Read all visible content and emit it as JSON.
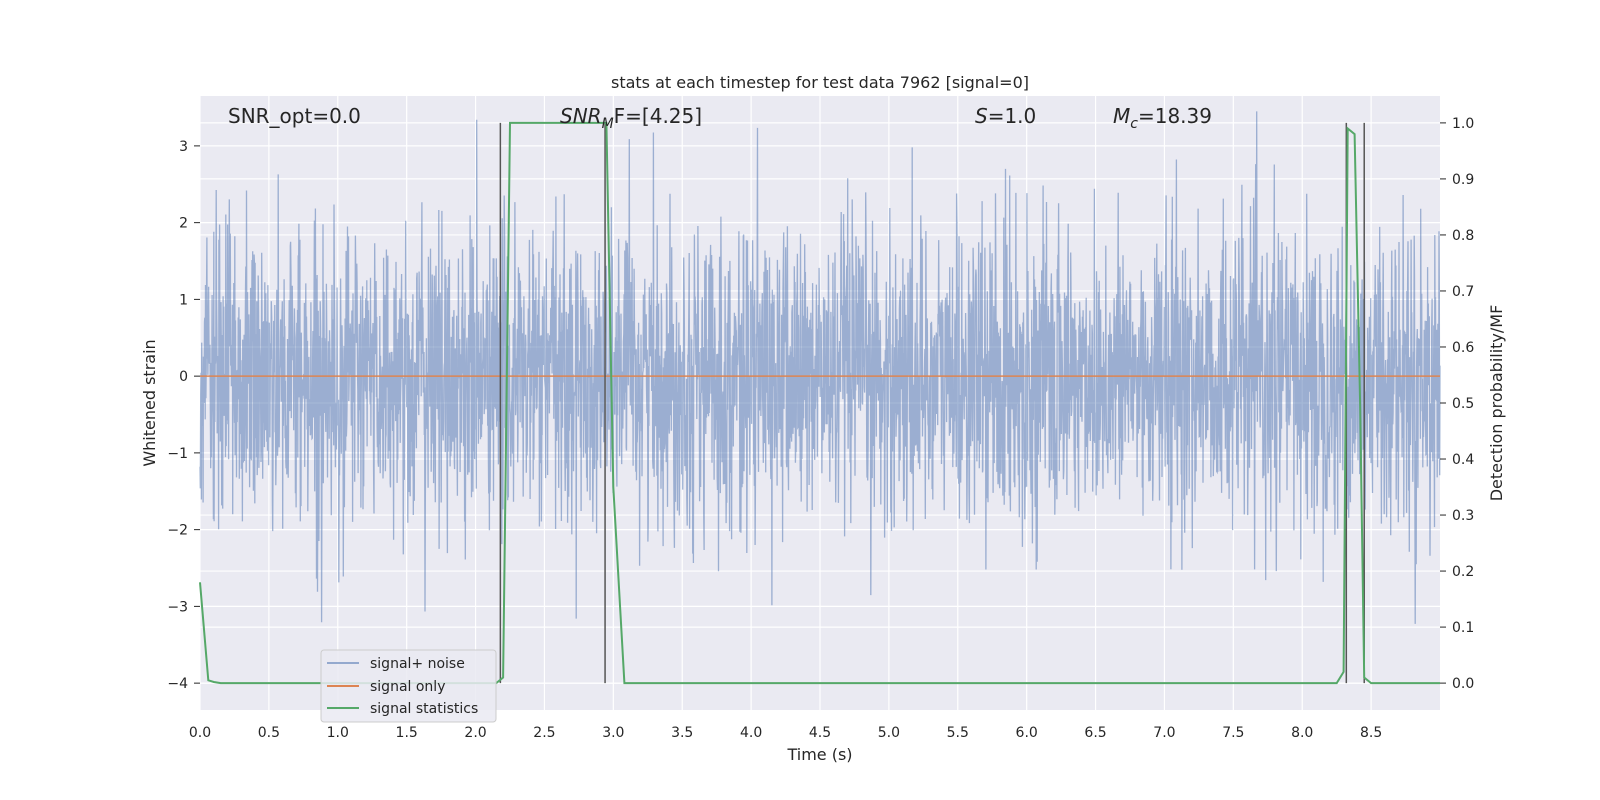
{
  "chart_data": {
    "type": "line",
    "title": "stats at each timestep for test data 7962 [signal=0]",
    "xlabel": "Time (s)",
    "ylabel": "Whitened strain",
    "y2label": "Detection probability/MF",
    "xlim": [
      0.0,
      9.0
    ],
    "ylim": [
      -4.35,
      3.65
    ],
    "y2lim": [
      -0.048,
      1.048
    ],
    "xticks": [
      "0.0",
      "0.5",
      "1.0",
      "1.5",
      "2.0",
      "2.5",
      "3.0",
      "3.5",
      "4.0",
      "4.5",
      "5.0",
      "5.5",
      "6.0",
      "6.5",
      "7.0",
      "7.5",
      "8.0",
      "8.5"
    ],
    "xtick_values": [
      0.0,
      0.5,
      1.0,
      1.5,
      2.0,
      2.5,
      3.0,
      3.5,
      4.0,
      4.5,
      5.0,
      5.5,
      6.0,
      6.5,
      7.0,
      7.5,
      8.0,
      8.5
    ],
    "yticks": [
      3,
      2,
      1,
      0,
      -1,
      -2,
      -3,
      -4
    ],
    "ytick_labels": [
      "3",
      "2",
      "1",
      "0",
      "−1",
      "−2",
      "−3",
      "−4"
    ],
    "y2ticks": [
      1.0,
      0.9,
      0.8,
      0.7,
      0.6,
      0.5,
      0.4,
      0.3,
      0.2,
      0.1,
      0.0
    ],
    "y2tick_labels": [
      "1.0",
      "0.9",
      "0.8",
      "0.7",
      "0.6",
      "0.5",
      "0.4",
      "0.3",
      "0.2",
      "0.1",
      "0.0"
    ],
    "grid": true,
    "legend_position": "lower-left",
    "colors": {
      "background": "#EAEAF2",
      "noise": "#4C72B0",
      "signal": "#DD8452",
      "statistics": "#55A868",
      "marker": "#555555"
    },
    "series": [
      {
        "name": "signal+ noise",
        "axis": "left",
        "note_type": "dense noise trace, ~1.8 std, sampled",
        "std": 0.95,
        "duration": 9.0
      },
      {
        "name": "signal only",
        "axis": "left",
        "x": [
          0.0,
          9.0
        ],
        "y": [
          0.0,
          0.0
        ]
      },
      {
        "name": "signal statistics",
        "axis": "right",
        "x": [
          0.0,
          0.06,
          0.1,
          0.15,
          2.15,
          2.2,
          2.25,
          2.8,
          2.95,
          3.0,
          3.08,
          8.25,
          8.3,
          8.33,
          8.38,
          8.42,
          8.45,
          8.5,
          9.0
        ],
        "y": [
          0.18,
          0.005,
          0.002,
          0.0,
          0.0,
          0.01,
          1.0,
          1.0,
          1.0,
          0.35,
          0.0,
          0.0,
          0.02,
          0.99,
          0.98,
          0.5,
          0.01,
          0.0,
          0.0
        ]
      }
    ],
    "vlines": [
      2.18,
      2.94,
      8.32,
      8.45
    ],
    "annotations": {
      "snr_opt": "SNR_opt=0.0",
      "snr_mf_main": "SNR",
      "snr_mf_sub": "M",
      "snr_mf_rest": "F=[4.25]",
      "s_main": "S",
      "s_rest": "=1.0",
      "mc_main": "M",
      "mc_sub": "c",
      "mc_rest": "=18.39"
    }
  }
}
